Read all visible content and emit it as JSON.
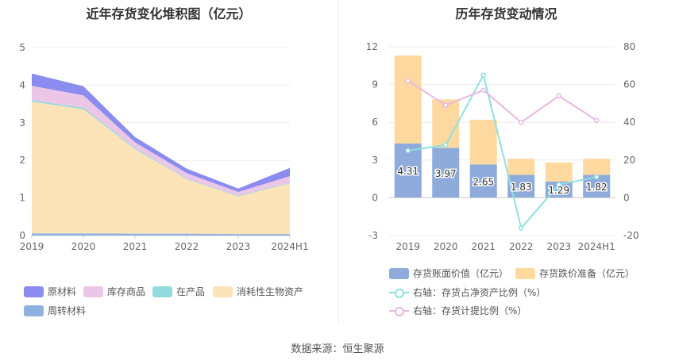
{
  "left_chart_title": "近年存货变化堆积图（亿元）",
  "right_chart_title": "历年存货变动情况",
  "source": "数据来源：恒生聚源",
  "colors": {
    "原材料": "#8a8cf0",
    "库存商品": "#ecc6e6",
    "在产品": "#93dbdc",
    "消耗性生物资产": "#fde4b8",
    "周转材料": "#8eb1df",
    "bar_value": "#8eabdc",
    "bar_reserve": "#fdd9a0",
    "line_ratio": "#8ee0e0",
    "line_provision": "#e6b8e0"
  },
  "chart_data": [
    {
      "type": "area",
      "stacked": true,
      "title": "近年存货变化堆积图（亿元）",
      "categories": [
        "2019",
        "2020",
        "2021",
        "2022",
        "2023",
        "2024H1"
      ],
      "ylim": [
        0,
        5
      ],
      "yticks": [
        0,
        1,
        2,
        3,
        4,
        5
      ],
      "series": [
        {
          "name": "周转材料",
          "values": [
            0.06,
            0.06,
            0.05,
            0.05,
            0.04,
            0.04
          ]
        },
        {
          "name": "消耗性生物资产",
          "values": [
            3.5,
            3.3,
            2.25,
            1.45,
            1.0,
            1.35
          ]
        },
        {
          "name": "在产品",
          "values": [
            0.04,
            0.04,
            0.03,
            0.02,
            0.02,
            0.02
          ]
        },
        {
          "name": "库存商品",
          "values": [
            0.38,
            0.33,
            0.15,
            0.14,
            0.1,
            0.17
          ]
        },
        {
          "name": "原材料",
          "values": [
            0.33,
            0.24,
            0.14,
            0.12,
            0.09,
            0.22
          ]
        }
      ],
      "legend": [
        "原材料",
        "库存商品",
        "在产品",
        "消耗性生物资产",
        "周转材料"
      ],
      "legend_position": "bottom-left"
    },
    {
      "type": "bar",
      "stacked": true,
      "title": "历年存货变动情况",
      "categories": [
        "2019",
        "2020",
        "2021",
        "2022",
        "2023",
        "2024H1"
      ],
      "ylim": [
        -3,
        12
      ],
      "yticks": [
        -3,
        0,
        3,
        6,
        9,
        12
      ],
      "y2lim": [
        -20,
        80
      ],
      "y2ticks": [
        -20,
        0,
        20,
        40,
        60,
        80
      ],
      "bars": [
        {
          "name": "存货账面价值（亿元）",
          "values": [
            4.31,
            3.97,
            2.65,
            1.83,
            1.29,
            1.82
          ],
          "labels": [
            "4.31",
            "3.97",
            "2.65",
            "1.83",
            "1.29",
            "1.82"
          ]
        },
        {
          "name": "存货跌价准备（亿元）",
          "values": [
            7.0,
            3.85,
            3.55,
            1.27,
            1.51,
            1.28
          ]
        }
      ],
      "lines": [
        {
          "name": "右轴：存货占净资产比例（%）",
          "axis": "right",
          "values": [
            25,
            28,
            65,
            -16,
            7,
            11
          ]
        },
        {
          "name": "右轴：存货计提比例（%）",
          "axis": "right",
          "values": [
            62,
            49,
            57,
            40,
            54,
            41
          ]
        }
      ],
      "legend_position": "bottom"
    }
  ]
}
